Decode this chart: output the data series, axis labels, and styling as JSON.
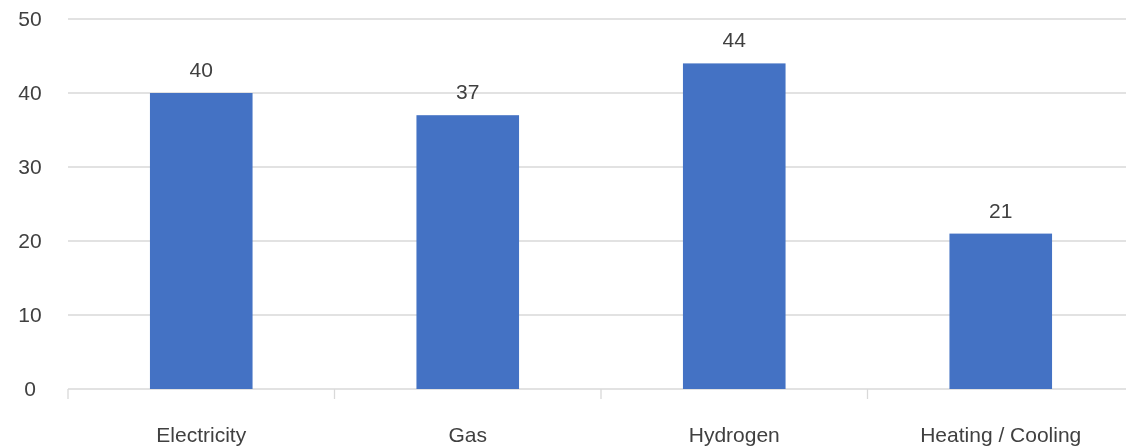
{
  "chart_data": {
    "type": "bar",
    "categories": [
      "Electricity",
      "Gas",
      "Hydrogen",
      "Heating / Cooling"
    ],
    "values": [
      40,
      37,
      44,
      21
    ],
    "color": "#4472c4",
    "ylim": [
      0,
      50
    ],
    "yticks": [
      0,
      10,
      20,
      30,
      40,
      50
    ],
    "grid": "y",
    "data_labels": true
  }
}
